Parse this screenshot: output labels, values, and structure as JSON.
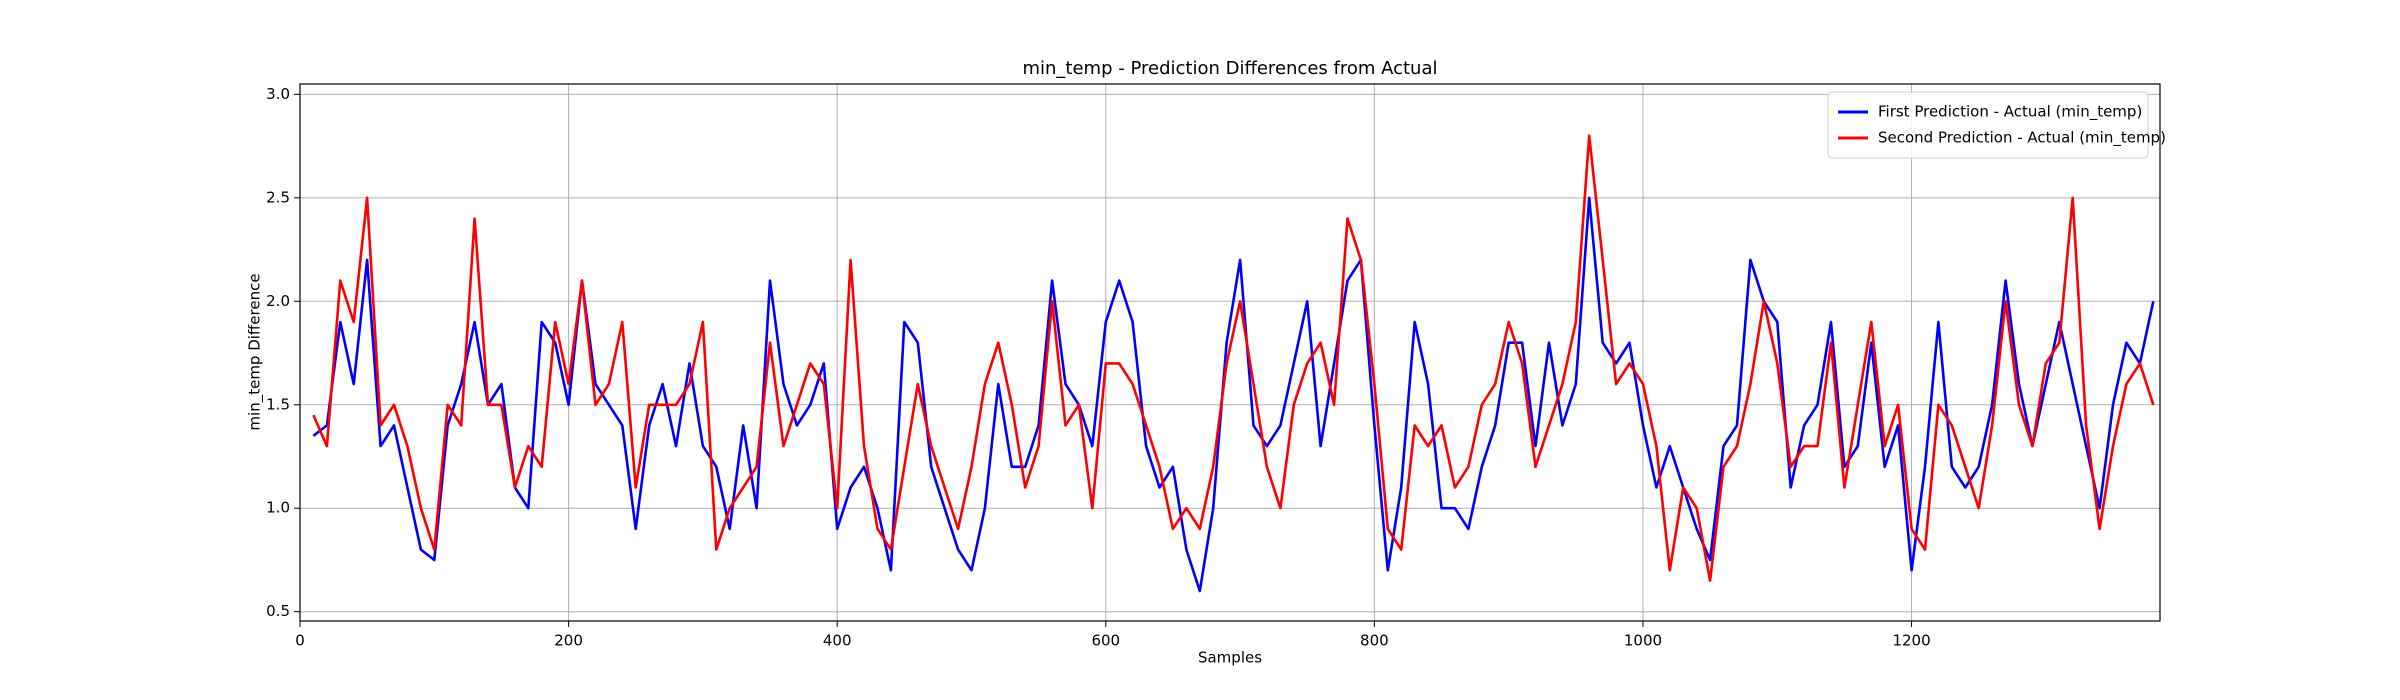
{
  "chart_data": {
    "type": "line",
    "title": "min_temp - Prediction Differences from Actual",
    "xlabel": "Samples",
    "ylabel": "min_temp Difference",
    "x": [
      10,
      20,
      30,
      40,
      50,
      60,
      70,
      80,
      90,
      100,
      110,
      120,
      130,
      140,
      150,
      160,
      170,
      180,
      190,
      200,
      210,
      220,
      230,
      240,
      250,
      260,
      270,
      280,
      290,
      300,
      310,
      320,
      330,
      340,
      350,
      360,
      370,
      380,
      390,
      400,
      410,
      420,
      430,
      440,
      450,
      460,
      470,
      480,
      490,
      500,
      510,
      520,
      530,
      540,
      550,
      560,
      570,
      580,
      590,
      600,
      610,
      620,
      630,
      640,
      650,
      660,
      670,
      680,
      690,
      700,
      710,
      720,
      730,
      740,
      750,
      760,
      770,
      780,
      790,
      800,
      810,
      820,
      830,
      840,
      850,
      860,
      870,
      880,
      890,
      900,
      910,
      920,
      930,
      940,
      950,
      960,
      970,
      980,
      990,
      1000,
      1010,
      1020,
      1030,
      1040,
      1050,
      1060,
      1070,
      1080,
      1090,
      1100,
      1110,
      1120,
      1130,
      1140,
      1150,
      1160,
      1170,
      1180,
      1190,
      1200,
      1210,
      1220,
      1230,
      1240,
      1250,
      1260,
      1270,
      1280,
      1290,
      1300,
      1310,
      1320,
      1330,
      1340,
      1350,
      1360,
      1370,
      1380
    ],
    "series": [
      {
        "name": "First Prediction - Actual (min_temp)",
        "color": "#0000ff",
        "values": [
          1.35,
          1.4,
          1.9,
          1.6,
          2.2,
          1.3,
          1.4,
          1.1,
          0.8,
          0.75,
          1.4,
          1.6,
          1.9,
          1.5,
          1.6,
          1.1,
          1.0,
          1.9,
          1.8,
          1.5,
          2.1,
          1.6,
          1.5,
          1.4,
          0.9,
          1.4,
          1.6,
          1.3,
          1.7,
          1.3,
          1.2,
          0.9,
          1.4,
          1.0,
          2.1,
          1.6,
          1.4,
          1.5,
          1.7,
          0.9,
          1.1,
          1.2,
          1.0,
          0.7,
          1.9,
          1.8,
          1.2,
          1.0,
          0.8,
          0.7,
          1.0,
          1.6,
          1.2,
          1.2,
          1.4,
          2.1,
          1.6,
          1.5,
          1.3,
          1.9,
          2.1,
          1.9,
          1.3,
          1.1,
          1.2,
          0.8,
          0.6,
          1.0,
          1.8,
          2.2,
          1.4,
          1.3,
          1.4,
          1.7,
          2.0,
          1.3,
          1.7,
          2.1,
          2.2,
          1.4,
          0.7,
          1.1,
          1.9,
          1.6,
          1.0,
          1.0,
          0.9,
          1.2,
          1.4,
          1.8,
          1.8,
          1.3,
          1.8,
          1.4,
          1.6,
          2.5,
          1.8,
          1.7,
          1.8,
          1.4,
          1.1,
          1.3,
          1.1,
          0.9,
          0.75,
          1.3,
          1.4,
          2.2,
          2.0,
          1.9,
          1.1,
          1.4,
          1.5,
          1.9,
          1.2,
          1.3,
          1.8,
          1.2,
          1.4,
          0.7,
          1.2,
          1.9,
          1.2,
          1.1,
          1.2,
          1.5,
          2.1,
          1.6,
          1.3,
          1.6,
          1.9,
          1.6,
          1.3,
          1.0,
          1.5,
          1.8,
          1.7,
          2.0
        ]
      },
      {
        "name": "Second Prediction - Actual (min_temp)",
        "color": "#ff0000",
        "values": [
          1.45,
          1.3,
          2.1,
          1.9,
          2.5,
          1.4,
          1.5,
          1.3,
          1.0,
          0.8,
          1.5,
          1.4,
          2.4,
          1.5,
          1.5,
          1.1,
          1.3,
          1.2,
          1.9,
          1.6,
          2.1,
          1.5,
          1.6,
          1.9,
          1.1,
          1.5,
          1.5,
          1.5,
          1.6,
          1.9,
          0.8,
          1.0,
          1.1,
          1.2,
          1.8,
          1.3,
          1.5,
          1.7,
          1.6,
          1.0,
          2.2,
          1.3,
          0.9,
          0.8,
          1.2,
          1.6,
          1.3,
          1.1,
          0.9,
          1.2,
          1.6,
          1.8,
          1.5,
          1.1,
          1.3,
          2.0,
          1.4,
          1.5,
          1.0,
          1.7,
          1.7,
          1.6,
          1.4,
          1.2,
          0.9,
          1.0,
          0.9,
          1.2,
          1.7,
          2.0,
          1.6,
          1.2,
          1.0,
          1.5,
          1.7,
          1.8,
          1.5,
          2.4,
          2.2,
          1.6,
          0.9,
          0.8,
          1.4,
          1.3,
          1.4,
          1.1,
          1.2,
          1.5,
          1.6,
          1.9,
          1.7,
          1.2,
          1.4,
          1.6,
          1.9,
          2.8,
          2.2,
          1.6,
          1.7,
          1.6,
          1.3,
          0.7,
          1.1,
          1.0,
          0.65,
          1.2,
          1.3,
          1.6,
          2.0,
          1.7,
          1.2,
          1.3,
          1.3,
          1.8,
          1.1,
          1.5,
          1.9,
          1.3,
          1.5,
          0.9,
          0.8,
          1.5,
          1.4,
          1.2,
          1.0,
          1.4,
          2.0,
          1.5,
          1.3,
          1.7,
          1.8,
          2.5,
          1.4,
          0.9,
          1.3,
          1.6,
          1.7,
          1.5
        ]
      }
    ],
    "xlim": [
      0,
      1385
    ],
    "ylim": [
      0.455,
      3.05
    ],
    "xticks": [
      0,
      200,
      400,
      600,
      800,
      1000,
      1200
    ],
    "yticks": [
      0.5,
      {
        "value": 1,
        "label": "1.0"
      },
      1.5,
      {
        "value": 2,
        "label": "2.0"
      },
      2.5,
      {
        "value": 3,
        "label": "3.0"
      }
    ],
    "grid": true,
    "legend": "upper right"
  }
}
